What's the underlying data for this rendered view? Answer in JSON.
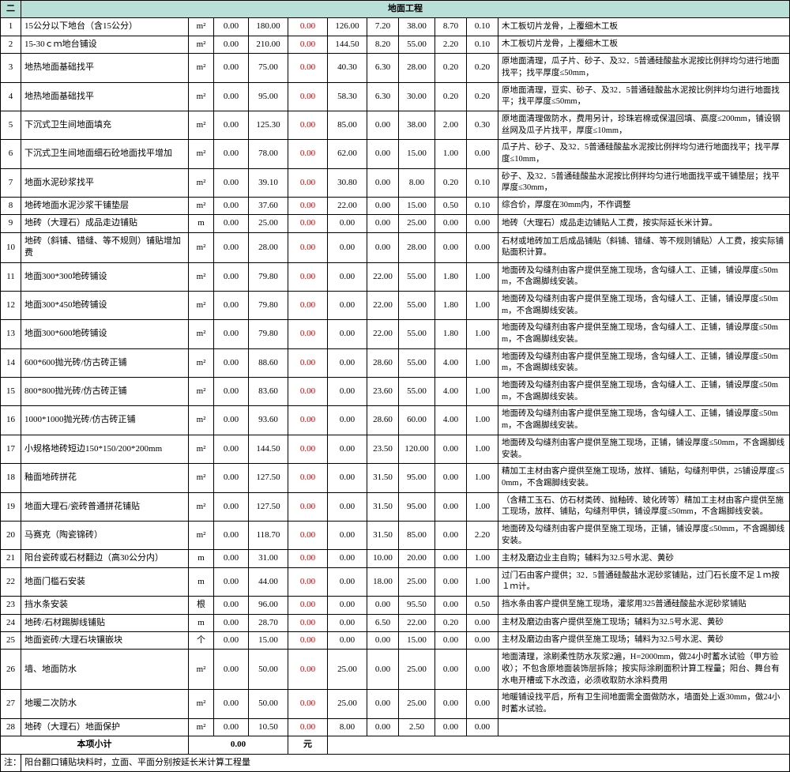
{
  "header": {
    "section_num": "二",
    "section_title": "地面工程"
  },
  "rows": [
    {
      "idx": "1",
      "name": "15公分以下地台（含15公分）",
      "unit": "m²",
      "q": "0.00",
      "price": "180.00",
      "red": "0.00",
      "a": "126.00",
      "b": "7.20",
      "c": "38.00",
      "d": "8.70",
      "e": "0.10",
      "desc": "木工板切片龙骨，上覆细木工板"
    },
    {
      "idx": "2",
      "name": "15-30ｃｍ地台铺设",
      "unit": "m²",
      "q": "0.00",
      "price": "210.00",
      "red": "0.00",
      "a": "144.50",
      "b": "8.20",
      "c": "55.00",
      "d": "2.20",
      "e": "0.10",
      "desc": "木工板切片龙骨，上覆细木工板"
    },
    {
      "idx": "3",
      "name": "地热地面基础找平",
      "unit": "m²",
      "q": "0.00",
      "price": "75.00",
      "red": "0.00",
      "a": "40.30",
      "b": "6.30",
      "c": "28.00",
      "d": "0.20",
      "e": "0.20",
      "desc": "原地面清理，瓜子片、砂子、及32．5普通硅酸盐水泥按比例拌均匀进行地面找平；找平厚度≤50mm，"
    },
    {
      "idx": "4",
      "name": "地热地面基础找平",
      "unit": "m²",
      "q": "0.00",
      "price": "95.00",
      "red": "0.00",
      "a": "58.30",
      "b": "6.30",
      "c": "30.00",
      "d": "0.20",
      "e": "0.20",
      "desc": "原地面清理，豆实、砂子、及32．5普通硅酸盐水泥按比例拌均匀进行地面找平；找平厚度≤50mm，"
    },
    {
      "idx": "5",
      "name": "下沉式卫生间地面填充",
      "unit": "m²",
      "q": "0.00",
      "price": "125.30",
      "red": "0.00",
      "a": "85.00",
      "b": "0.00",
      "c": "38.00",
      "d": "2.00",
      "e": "0.30",
      "desc": "原地面清理做防水，费用另计，珍珠岩棉或保温回填、高度≤200mm，铺设钢丝网及瓜子片找平，厚度≤10mm，"
    },
    {
      "idx": "6",
      "name": "下沉式卫生间地面细石砼地面找平增加",
      "unit": "m²",
      "q": "0.00",
      "price": "78.00",
      "red": "0.00",
      "a": "62.00",
      "b": "0.00",
      "c": "15.00",
      "d": "1.00",
      "e": "0.00",
      "desc": "瓜子片、砂子、及32．5普通硅酸盐水泥按比例拌均匀进行地面找平；找平厚度≤10mm，"
    },
    {
      "idx": "7",
      "name": "地面水泥砂浆找平",
      "unit": "m²",
      "q": "0.00",
      "price": "39.10",
      "red": "0.00",
      "a": "30.80",
      "b": "0.00",
      "c": "8.00",
      "d": "0.20",
      "e": "0.10",
      "desc": "砂子、及32．5普通硅酸盐水泥按比例拌均匀进行地面找平或干铺垫层；找平厚度≤30mm，"
    },
    {
      "idx": "8",
      "name": "地砖地面水泥沙浆干铺垫层",
      "unit": "m²",
      "q": "0.00",
      "price": "37.60",
      "red": "0.00",
      "a": "22.00",
      "b": "0.00",
      "c": "15.00",
      "d": "0.50",
      "e": "0.10",
      "desc": "综合价，厚度在30mm内，不作调整"
    },
    {
      "idx": "9",
      "name": "地砖（大理石）成品走边铺贴",
      "unit": "m",
      "q": "0.00",
      "price": "25.00",
      "red": "0.00",
      "a": "0.00",
      "b": "0.00",
      "c": "25.00",
      "d": "0.00",
      "e": "0.00",
      "desc": "地砖（大理石）成品走边铺贴人工费，按实际延长米计算。"
    },
    {
      "idx": "10",
      "name": "地砖（斜铺、错缝、等不规则）铺贴增加费",
      "unit": "m²",
      "q": "0.00",
      "price": "28.00",
      "red": "0.00",
      "a": "0.00",
      "b": "0.00",
      "c": "28.00",
      "d": "0.00",
      "e": "0.00",
      "desc": "石材或地砖加工后成品铺贴（斜铺、错缝、等不规则铺贴）人工费，按实际铺贴面积计算。"
    },
    {
      "idx": "11",
      "name": "地面300*300地砖铺设",
      "unit": "m²",
      "q": "0.00",
      "price": "79.80",
      "red": "0.00",
      "a": "0.00",
      "b": "22.00",
      "c": "55.00",
      "d": "1.80",
      "e": "1.00",
      "desc": "地面砖及勾缝剂由客户提供至施工现场，含勾缝人工、正铺，铺设厚度≤50mm，不含踢脚线安装。"
    },
    {
      "idx": "12",
      "name": "地面300*450地砖铺设",
      "unit": "m²",
      "q": "0.00",
      "price": "79.80",
      "red": "0.00",
      "a": "0.00",
      "b": "22.00",
      "c": "55.00",
      "d": "1.80",
      "e": "1.00",
      "desc": "地面砖及勾缝剂由客户提供至施工现场，含勾缝人工、正铺，铺设厚度≤50mm，不含踢脚线安装。"
    },
    {
      "idx": "13",
      "name": "地面300*600地砖铺设",
      "unit": "m²",
      "q": "0.00",
      "price": "79.80",
      "red": "0.00",
      "a": "0.00",
      "b": "22.00",
      "c": "55.00",
      "d": "1.80",
      "e": "1.00",
      "desc": "地面砖及勾缝剂由客户提供至施工现场，含勾缝人工、正铺，铺设厚度≤50mm，不含踢脚线安装。"
    },
    {
      "idx": "14",
      "name": "600*600抛光砖/仿古砖正铺",
      "unit": "m²",
      "q": "0.00",
      "price": "88.60",
      "red": "0.00",
      "a": "0.00",
      "b": "28.60",
      "c": "55.00",
      "d": "4.00",
      "e": "1.00",
      "desc": "地面砖及勾缝剂由客户提供至施工现场，含勾缝人工、正铺，铺设厚度≤50mm，不含踢脚线安装。"
    },
    {
      "idx": "15",
      "name": "800*800抛光砖/仿古砖正铺",
      "unit": "m²",
      "q": "0.00",
      "price": "83.60",
      "red": "0.00",
      "a": "0.00",
      "b": "23.60",
      "c": "55.00",
      "d": "4.00",
      "e": "1.00",
      "desc": "地面砖及勾缝剂由客户提供至施工现场，含勾缝人工、正铺，铺设厚度≤50mm，不含踢脚线安装。"
    },
    {
      "idx": "16",
      "name": "1000*1000抛光砖/仿古砖正铺",
      "unit": "m²",
      "q": "0.00",
      "price": "93.60",
      "red": "0.00",
      "a": "0.00",
      "b": "28.60",
      "c": "60.00",
      "d": "4.00",
      "e": "1.00",
      "desc": "地面砖及勾缝剂由客户提供至施工现场，含勾缝人工、正铺，铺设厚度≤50mm，不含踢脚线安装。"
    },
    {
      "idx": "17",
      "name": "小规格地砖短边150*150/200*200mm",
      "unit": "m²",
      "q": "0.00",
      "price": "144.50",
      "red": "0.00",
      "a": "0.00",
      "b": "23.50",
      "c": "120.00",
      "d": "0.00",
      "e": "1.00",
      "desc": "地面砖及勾缝剂由客户提供至施工现场，正铺，铺设厚度≤50mm，不含踢脚线安装。"
    },
    {
      "idx": "18",
      "name": "釉面地砖拼花",
      "unit": "m²",
      "q": "0.00",
      "price": "127.50",
      "red": "0.00",
      "a": "0.00",
      "b": "31.50",
      "c": "95.00",
      "d": "0.00",
      "e": "1.00",
      "desc": "精加工主材由客户提供至施工现场，放样、铺贴，勾缝剂甲供，25铺设厚度≤50mm，不含踢脚线安装。"
    },
    {
      "idx": "19",
      "name": "地面大理石/瓷砖普通拼花铺贴",
      "unit": "m²",
      "q": "0.00",
      "price": "127.50",
      "red": "0.00",
      "a": "0.00",
      "b": "31.50",
      "c": "95.00",
      "d": "0.00",
      "e": "1.00",
      "desc": "（含精工玉石、仿石材类砖、抛釉砖、玻化砖等）精加工主材由客户提供至施工现场，放样、铺贴，勾缝剂甲供，铺设厚度≤50mm，不含踢脚线安装。"
    },
    {
      "idx": "20",
      "name": "马赛克（陶瓷锦砖）",
      "unit": "m²",
      "q": "0.00",
      "price": "118.70",
      "red": "0.00",
      "a": "0.00",
      "b": "31.50",
      "c": "85.00",
      "d": "0.00",
      "e": "2.20",
      "desc": "地面砖及勾缝剂由客户提供至施工现场，正铺，铺设厚度≤50mm，不含踢脚线安装。"
    },
    {
      "idx": "21",
      "name": "阳台瓷砖或石材翻边（高30公分内）",
      "unit": "m",
      "q": "0.00",
      "price": "31.00",
      "red": "0.00",
      "a": "0.00",
      "b": "10.00",
      "c": "20.00",
      "d": "0.00",
      "e": "1.00",
      "desc": "主材及磨边业主自购；辅料为32.5号水泥、黄砂"
    },
    {
      "idx": "22",
      "name": "地面门槛石安装",
      "unit": "m",
      "q": "0.00",
      "price": "44.00",
      "red": "0.00",
      "a": "0.00",
      "b": "18.00",
      "c": "25.00",
      "d": "0.00",
      "e": "1.00",
      "desc": "过门石由客户提供；32．5普通硅酸盐水泥砂浆铺贴，过门石长度不足１ｍ按１ｍ计。"
    },
    {
      "idx": "23",
      "name": "挡水条安装",
      "unit": "根",
      "q": "0.00",
      "price": "96.00",
      "red": "0.00",
      "a": "0.00",
      "b": "0.00",
      "c": "95.50",
      "d": "0.00",
      "e": "0.50",
      "desc": "挡水条由客户提供至施工现场，灌浆用325普通硅酸盐水泥砂浆铺贴"
    },
    {
      "idx": "24",
      "name": "地砖/石材踢脚线铺贴",
      "unit": "m",
      "q": "0.00",
      "price": "28.70",
      "red": "0.00",
      "a": "0.00",
      "b": "6.50",
      "c": "22.00",
      "d": "0.20",
      "e": "0.00",
      "desc": "主材及磨边由客户提供至施工现场；辅料为32.5号水泥、黄砂"
    },
    {
      "idx": "25",
      "name": "地面瓷砖/大理石块镶嵌块",
      "unit": "个",
      "q": "0.00",
      "price": "15.00",
      "red": "0.00",
      "a": "0.00",
      "b": "0.00",
      "c": "15.00",
      "d": "0.00",
      "e": "0.00",
      "desc": "主材及磨边由客户提供至施工现场；辅料为32.5号水泥、黄砂"
    },
    {
      "idx": "26",
      "name": "墙、地面防水",
      "unit": "m²",
      "q": "0.00",
      "price": "50.00",
      "red": "0.00",
      "a": "25.00",
      "b": "0.00",
      "c": "25.00",
      "d": "0.00",
      "e": "0.00",
      "desc": "地面清理，涂刷柔性防水灰浆2遍，H=2000mm，做24小时蓄水试验（甲方验收）；不包含原地面装饰层拆除；按实际涂刷面积计算工程量；阳台、舞台有水电开槽或下水改造，必须收取防水涂料费用"
    },
    {
      "idx": "27",
      "name": "地暖二次防水",
      "unit": "m²",
      "q": "0.00",
      "price": "50.00",
      "red": "0.00",
      "a": "25.00",
      "b": "0.00",
      "c": "25.00",
      "d": "0.00",
      "e": "0.00",
      "desc": "地暖铺设找平后，所有卫生间地面需全面做防水，墙面处上返30mm，做24小时蓄水试验。"
    },
    {
      "idx": "28",
      "name": "地砖（大理石）地面保护",
      "unit": "m²",
      "q": "0.00",
      "price": "10.50",
      "red": "0.00",
      "a": "8.00",
      "b": "0.00",
      "c": "2.50",
      "d": "0.00",
      "e": "0.00",
      "desc": ""
    }
  ],
  "subtotal": {
    "label": "本项小计",
    "value": "0.00",
    "unit": "元"
  },
  "note": {
    "label": "注：",
    "text": "阳台翻口铺贴块料时，立面、平面分别按延长米计算工程量"
  }
}
